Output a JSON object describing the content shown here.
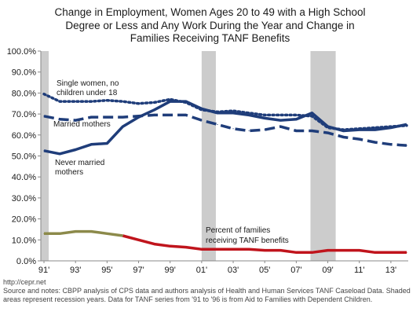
{
  "chart_data": {
    "type": "line",
    "title_lines": [
      "Change in Employment, Women Ages 20 to 49 with a High School",
      "Degree or Less and Any Work During the Year and Change in",
      "Families Receiving TANF Benefits"
    ],
    "xlabel": "",
    "ylabel": "",
    "x_range": [
      1991,
      2014
    ],
    "ylim": [
      0,
      100
    ],
    "y_ticks": [
      "0.0%",
      "10.0%",
      "20.0%",
      "30.0%",
      "40.0%",
      "50.0%",
      "60.0%",
      "70.0%",
      "80.0%",
      "90.0%",
      "100.0%"
    ],
    "x_ticks": [
      {
        "year": 1991,
        "label": "91'"
      },
      {
        "year": 1993,
        "label": "93'"
      },
      {
        "year": 1995,
        "label": "95'"
      },
      {
        "year": 1997,
        "label": "97'"
      },
      {
        "year": 1999,
        "label": "99'"
      },
      {
        "year": 2001,
        "label": "01'"
      },
      {
        "year": 2003,
        "label": "03'"
      },
      {
        "year": 2005,
        "label": "05'"
      },
      {
        "year": 2007,
        "label": "07'"
      },
      {
        "year": 2009,
        "label": "09'"
      },
      {
        "year": 2011,
        "label": "11'"
      },
      {
        "year": 2013,
        "label": "13'"
      }
    ],
    "recessions": [
      [
        1990.6,
        1991.3
      ],
      [
        2001.0,
        2001.9
      ],
      [
        2007.9,
        2009.5
      ]
    ],
    "series": [
      {
        "key": "single",
        "label_lines": [
          "Single women, no",
          "children under 18"
        ],
        "style": "dotted",
        "color": "#1f3d7a",
        "x": [
          1991,
          1992,
          1993,
          1994,
          1995,
          1996,
          1997,
          1998,
          1999,
          2000,
          2001,
          2002,
          2003,
          2004,
          2005,
          2006,
          2007,
          2008,
          2009,
          2010,
          2011,
          2012,
          2013,
          2014
        ],
        "y": [
          79.5,
          76.0,
          76.0,
          76.0,
          76.5,
          76.0,
          75.0,
          75.5,
          77.0,
          75.5,
          72.0,
          71.0,
          71.5,
          70.5,
          69.5,
          69.5,
          69.5,
          69.0,
          63.5,
          62.5,
          63.0,
          63.5,
          64.0,
          64.5
        ]
      },
      {
        "key": "married",
        "label_lines": [
          "Married mothers"
        ],
        "style": "dashed",
        "color": "#1f3d7a",
        "x": [
          1991,
          1992,
          1993,
          1994,
          1995,
          1996,
          1997,
          1998,
          1999,
          2000,
          2001,
          2002,
          2003,
          2004,
          2005,
          2006,
          2007,
          2008,
          2009,
          2010,
          2011,
          2012,
          2013,
          2014
        ],
        "y": [
          69.0,
          67.5,
          67.0,
          68.5,
          68.5,
          68.5,
          69.0,
          69.5,
          69.5,
          69.5,
          67.0,
          65.0,
          63.0,
          62.0,
          62.5,
          64.0,
          62.0,
          62.0,
          61.0,
          59.0,
          58.0,
          56.5,
          55.5,
          55.0
        ]
      },
      {
        "key": "never",
        "label_lines": [
          "Never married",
          "mothers"
        ],
        "style": "solid",
        "color": "#1f3d7a",
        "x": [
          1991,
          1992,
          1993,
          1994,
          1995,
          1996,
          1997,
          1998,
          1999,
          2000,
          2001,
          2002,
          2003,
          2004,
          2005,
          2006,
          2007,
          2008,
          2009,
          2010,
          2011,
          2012,
          2013,
          2014
        ],
        "y": [
          52.5,
          51.0,
          53.0,
          55.5,
          56.0,
          64.0,
          68.5,
          72.0,
          76.0,
          76.0,
          72.5,
          70.5,
          70.5,
          69.5,
          68.0,
          67.0,
          67.5,
          70.5,
          64.0,
          62.0,
          62.5,
          62.5,
          63.5,
          65.0
        ]
      },
      {
        "key": "tanf",
        "label_lines": [
          "Percent of families",
          "receiving TANF benefits"
        ],
        "style": "solid",
        "color": "#c0141c",
        "early_color": "#8c8a4a",
        "x": [
          1991,
          1992,
          1993,
          1994,
          1995,
          1996,
          1997,
          1998,
          1999,
          2000,
          2001,
          2002,
          2003,
          2004,
          2005,
          2006,
          2007,
          2008,
          2009,
          2010,
          2011,
          2012,
          2013,
          2014
        ],
        "y": [
          13.0,
          13.0,
          14.0,
          14.0,
          13.0,
          12.0,
          10.0,
          8.0,
          7.0,
          6.5,
          5.5,
          5.5,
          5.5,
          5.5,
          5.0,
          5.0,
          4.0,
          4.0,
          5.0,
          5.0,
          5.0,
          4.0,
          4.0,
          4.0
        ]
      }
    ]
  },
  "footer": {
    "url": "http://cepr.net",
    "notes": "Source and notes: CBPP analysis of CPS data and authors analysis of Health and Human Services TANF Caseload Data. Shaded areas represent recession years. Data for TANF series from '91 to '96 is from Aid to Families with Dependent Children."
  }
}
